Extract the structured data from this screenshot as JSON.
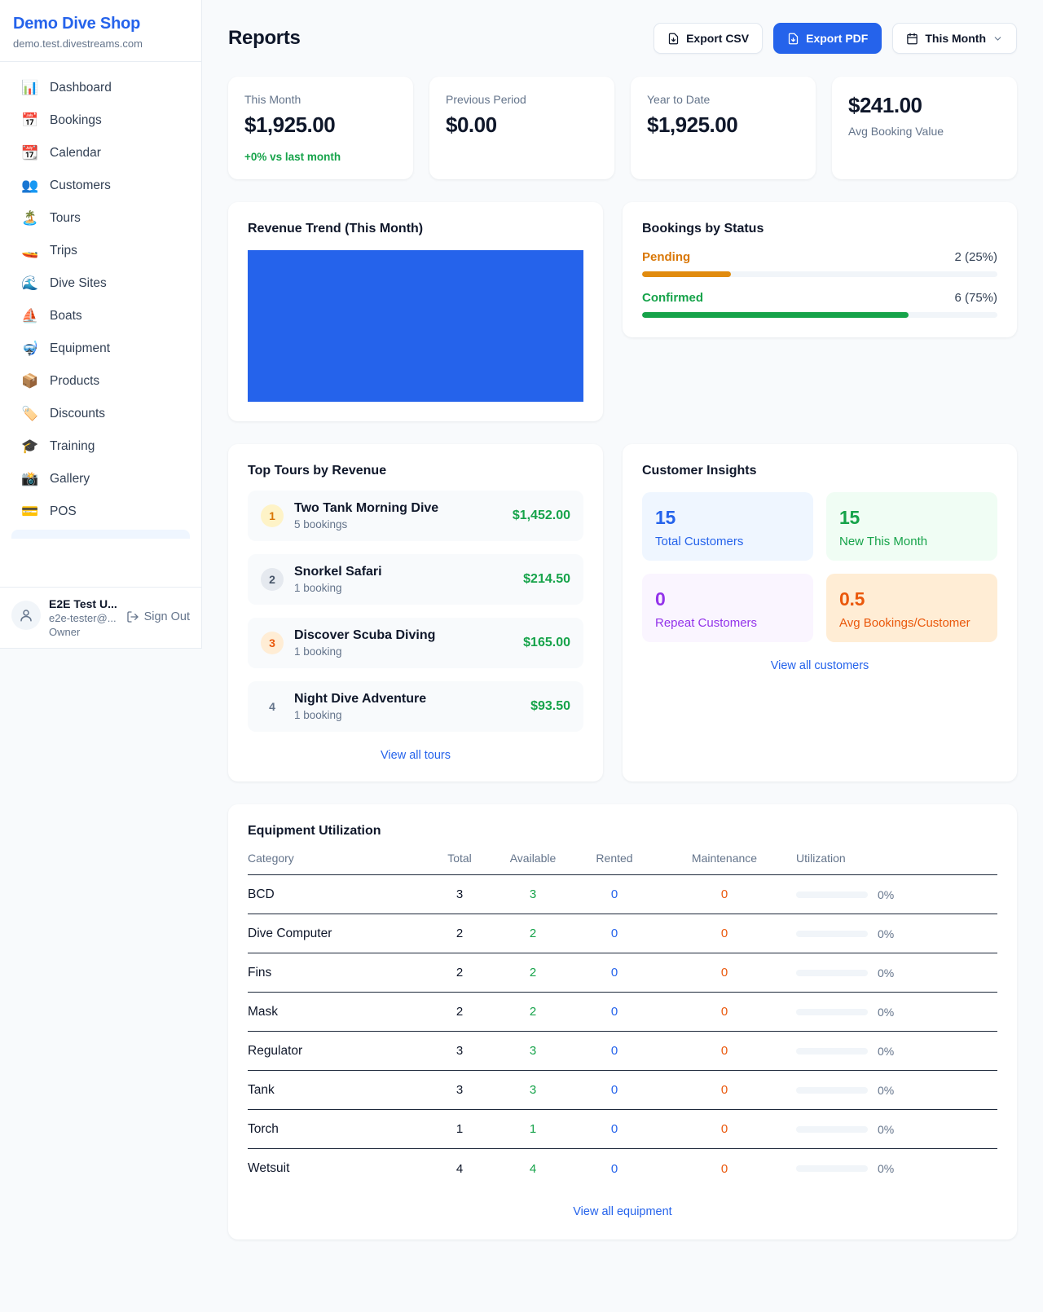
{
  "colors": {
    "accent_blue": "#2563eb",
    "green": "#16a34a",
    "orange": "#d97706",
    "red_orange": "#ea580c",
    "purple": "#9333ea",
    "page_bg": "#f8fafc"
  },
  "sidebar": {
    "brand": {
      "name": "Demo Dive Shop",
      "domain": "demo.test.divestreams.com"
    },
    "items": [
      {
        "icon": "📊",
        "label": "Dashboard"
      },
      {
        "icon": "📅",
        "label": "Bookings"
      },
      {
        "icon": "📆",
        "label": "Calendar"
      },
      {
        "icon": "👥",
        "label": "Customers"
      },
      {
        "icon": "🏝️",
        "label": "Tours"
      },
      {
        "icon": "🚤",
        "label": "Trips"
      },
      {
        "icon": "🌊",
        "label": "Dive Sites"
      },
      {
        "icon": "⛵",
        "label": "Boats"
      },
      {
        "icon": "🤿",
        "label": "Equipment"
      },
      {
        "icon": "📦",
        "label": "Products"
      },
      {
        "icon": "🏷️",
        "label": "Discounts"
      },
      {
        "icon": "🎓",
        "label": "Training"
      },
      {
        "icon": "📸",
        "label": "Gallery"
      },
      {
        "icon": "💳",
        "label": "POS"
      }
    ],
    "user": {
      "name": "E2E Test U...",
      "email": "e2e-tester@...",
      "role": "Owner",
      "sign_out_label": "Sign Out"
    }
  },
  "header": {
    "title": "Reports",
    "export_csv_label": "Export CSV",
    "export_pdf_label": "Export PDF",
    "period_label": "This Month"
  },
  "stats": [
    {
      "label": "This Month",
      "value": "$1,925.00",
      "delta": "+0% vs last month"
    },
    {
      "label": "Previous Period",
      "value": "$0.00"
    },
    {
      "label": "Year to Date",
      "value": "$1,925.00"
    },
    {
      "label": "Avg Booking Value",
      "value": "$241.00"
    }
  ],
  "revenue_trend": {
    "title": "Revenue Trend (This Month)",
    "bar_color": "#2563eb"
  },
  "bookings_by_status": {
    "title": "Bookings by Status",
    "rows": [
      {
        "label": "Pending",
        "count_text": "2 (25%)",
        "pct": 25
      },
      {
        "label": "Confirmed",
        "count_text": "6 (75%)",
        "pct": 75
      }
    ]
  },
  "top_tours": {
    "title": "Top Tours by Revenue",
    "rows": [
      {
        "rank": "1",
        "name": "Two Tank Morning Dive",
        "bookings": "5 bookings",
        "revenue": "$1,452.00"
      },
      {
        "rank": "2",
        "name": "Snorkel Safari",
        "bookings": "1 booking",
        "revenue": "$214.50"
      },
      {
        "rank": "3",
        "name": "Discover Scuba Diving",
        "bookings": "1 booking",
        "revenue": "$165.00"
      },
      {
        "rank": "4",
        "name": "Night Dive Adventure",
        "bookings": "1 booking",
        "revenue": "$93.50"
      }
    ],
    "link": "View all tours"
  },
  "customer_insights": {
    "title": "Customer Insights",
    "tiles": [
      {
        "value": "15",
        "label": "Total Customers",
        "color": "#2563eb"
      },
      {
        "value": "15",
        "label": "New This Month",
        "color": "#16a34a"
      },
      {
        "value": "0",
        "label": "Repeat Customers",
        "color": "#9333ea"
      },
      {
        "value": "0.5",
        "label": "Avg Bookings/Customer",
        "color": "#ea580c"
      }
    ],
    "link": "View all customers"
  },
  "equipment": {
    "title": "Equipment Utilization",
    "columns": [
      "Category",
      "Total",
      "Available",
      "Rented",
      "Maintenance",
      "Utilization"
    ],
    "rows": [
      {
        "category": "BCD",
        "total": "3",
        "available": "3",
        "rented": "0",
        "maintenance": "0",
        "utilization_pct": 0,
        "utilization_label": "0%"
      },
      {
        "category": "Dive Computer",
        "total": "2",
        "available": "2",
        "rented": "0",
        "maintenance": "0",
        "utilization_pct": 0,
        "utilization_label": "0%"
      },
      {
        "category": "Fins",
        "total": "2",
        "available": "2",
        "rented": "0",
        "maintenance": "0",
        "utilization_pct": 0,
        "utilization_label": "0%"
      },
      {
        "category": "Mask",
        "total": "2",
        "available": "2",
        "rented": "0",
        "maintenance": "0",
        "utilization_pct": 0,
        "utilization_label": "0%"
      },
      {
        "category": "Regulator",
        "total": "3",
        "available": "3",
        "rented": "0",
        "maintenance": "0",
        "utilization_pct": 0,
        "utilization_label": "0%"
      },
      {
        "category": "Tank",
        "total": "3",
        "available": "3",
        "rented": "0",
        "maintenance": "0",
        "utilization_pct": 0,
        "utilization_label": "0%"
      },
      {
        "category": "Torch",
        "total": "1",
        "available": "1",
        "rented": "0",
        "maintenance": "0",
        "utilization_pct": 0,
        "utilization_label": "0%"
      },
      {
        "category": "Wetsuit",
        "total": "4",
        "available": "4",
        "rented": "0",
        "maintenance": "0",
        "utilization_pct": 0,
        "utilization_label": "0%"
      }
    ],
    "link": "View all equipment"
  }
}
